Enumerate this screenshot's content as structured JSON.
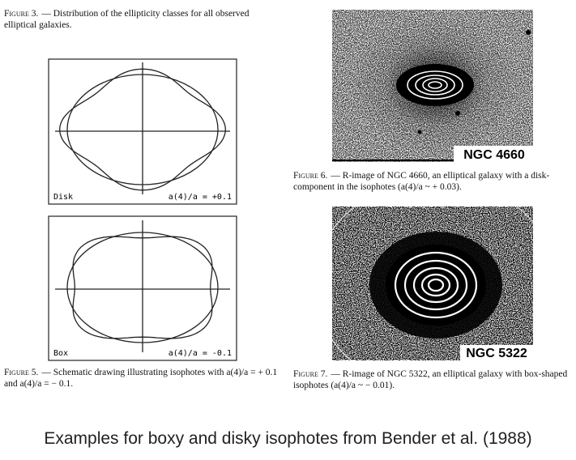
{
  "figure3": {
    "label": "Figure 3.",
    "text": "— Distribution of the ellipticity classes for all observed elliptical galaxies."
  },
  "panels": [
    {
      "label": "Disk",
      "annotation": "a(4)/a = +0.1"
    },
    {
      "label": "Box",
      "annotation": "a(4)/a = -0.1"
    }
  ],
  "figure5": {
    "label": "Figure 5.",
    "text": "— Schematic drawing illustrating isophotes with a(4)/a = + 0.1 and a(4)/a = − 0.1."
  },
  "figure6": {
    "image_label": "NGC 4660",
    "label": "Figure 6.",
    "text": "— R-image of NGC 4660, an elliptical galaxy with a disk-component in the isophotes (a(4)/a ~ + 0.03)."
  },
  "figure7": {
    "image_label": "NGC 5322",
    "label": "Figure 7.",
    "text": "— R-image of NGC 5322, an elliptical galaxy with box-shaped isophotes (a(4)/a ~ − 0.01)."
  },
  "caption": "Examples for boxy and disky isophotes from Bender et al. (1988)"
}
